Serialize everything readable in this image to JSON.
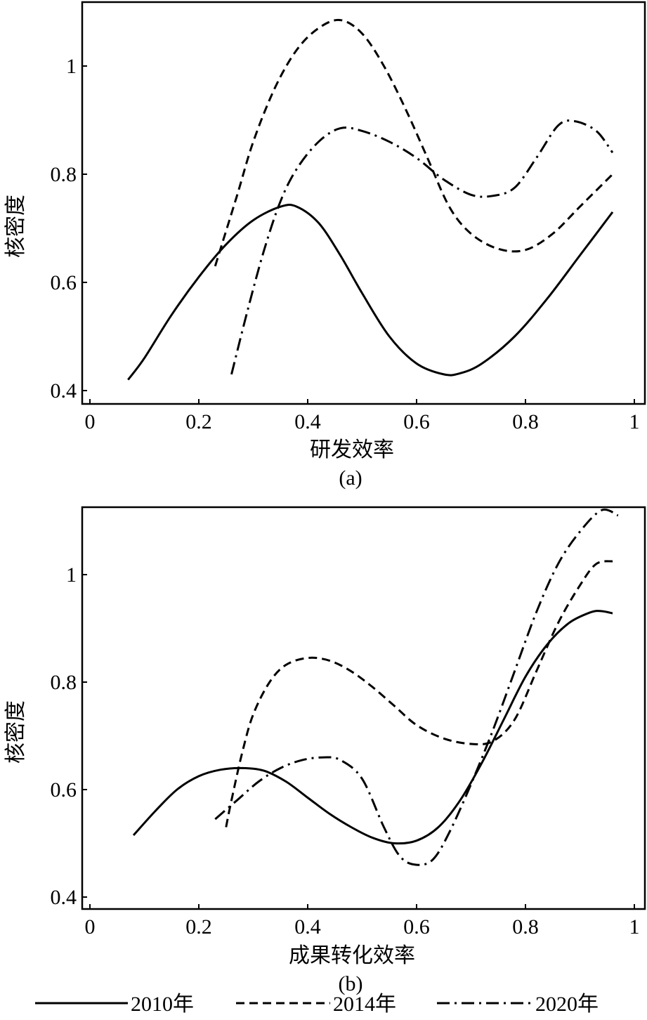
{
  "chart_data": [
    {
      "type": "line",
      "panel_label": "(a)",
      "xlabel": "研发效率",
      "ylabel": "核密度",
      "xlim": [
        0,
        1
      ],
      "ylim": [
        0.4,
        1.1
      ],
      "xticks": [
        "0",
        "0.2",
        "0.4",
        "0.6",
        "0.8",
        "1"
      ],
      "yticks": [
        "0.4",
        "0.6",
        "0.8",
        "1"
      ],
      "series": [
        {
          "name": "2010年",
          "style": "solid",
          "x": [
            0.07,
            0.1,
            0.15,
            0.2,
            0.25,
            0.3,
            0.35,
            0.38,
            0.42,
            0.46,
            0.5,
            0.55,
            0.6,
            0.65,
            0.68,
            0.72,
            0.78,
            0.84,
            0.9,
            0.96
          ],
          "y": [
            0.42,
            0.46,
            0.54,
            0.61,
            0.67,
            0.715,
            0.74,
            0.74,
            0.71,
            0.65,
            0.58,
            0.5,
            0.45,
            0.43,
            0.432,
            0.45,
            0.5,
            0.57,
            0.65,
            0.73
          ]
        },
        {
          "name": "2014年",
          "style": "dashed",
          "x": [
            0.23,
            0.27,
            0.3,
            0.34,
            0.38,
            0.42,
            0.46,
            0.5,
            0.54,
            0.58,
            0.62,
            0.66,
            0.7,
            0.75,
            0.8,
            0.85,
            0.9,
            0.96
          ],
          "y": [
            0.63,
            0.76,
            0.86,
            0.96,
            1.03,
            1.07,
            1.085,
            1.06,
            1.0,
            0.92,
            0.83,
            0.74,
            0.69,
            0.662,
            0.66,
            0.69,
            0.74,
            0.8
          ]
        },
        {
          "name": "2020年",
          "style": "dashdot",
          "x": [
            0.26,
            0.29,
            0.32,
            0.35,
            0.38,
            0.42,
            0.46,
            0.5,
            0.55,
            0.6,
            0.65,
            0.7,
            0.74,
            0.78,
            0.82,
            0.86,
            0.89,
            0.93,
            0.96
          ],
          "y": [
            0.43,
            0.55,
            0.66,
            0.75,
            0.81,
            0.86,
            0.885,
            0.88,
            0.86,
            0.83,
            0.79,
            0.762,
            0.76,
            0.775,
            0.83,
            0.89,
            0.898,
            0.88,
            0.84
          ]
        }
      ]
    },
    {
      "type": "line",
      "panel_label": "(b)",
      "xlabel": "成果转化效率",
      "ylabel": "核密度",
      "xlim": [
        0,
        1
      ],
      "ylim": [
        0.38,
        1.12
      ],
      "xticks": [
        "0",
        "0.2",
        "0.4",
        "0.6",
        "0.8",
        "1"
      ],
      "yticks": [
        "0.4",
        "0.6",
        "0.8",
        "1"
      ],
      "series": [
        {
          "name": "2010年",
          "style": "solid",
          "x": [
            0.08,
            0.12,
            0.16,
            0.2,
            0.24,
            0.28,
            0.32,
            0.36,
            0.4,
            0.44,
            0.48,
            0.52,
            0.56,
            0.6,
            0.64,
            0.68,
            0.72,
            0.76,
            0.8,
            0.84,
            0.88,
            0.92,
            0.94,
            0.96
          ],
          "y": [
            0.515,
            0.56,
            0.6,
            0.625,
            0.637,
            0.64,
            0.635,
            0.615,
            0.585,
            0.555,
            0.53,
            0.51,
            0.5,
            0.505,
            0.53,
            0.58,
            0.65,
            0.73,
            0.81,
            0.87,
            0.91,
            0.93,
            0.932,
            0.928
          ]
        },
        {
          "name": "2014年",
          "style": "dashed",
          "x": [
            0.25,
            0.26,
            0.28,
            0.3,
            0.33,
            0.36,
            0.4,
            0.44,
            0.48,
            0.52,
            0.56,
            0.6,
            0.65,
            0.7,
            0.74,
            0.78,
            0.82,
            0.86,
            0.9,
            0.93,
            0.96
          ],
          "y": [
            0.53,
            0.58,
            0.67,
            0.74,
            0.8,
            0.832,
            0.845,
            0.84,
            0.82,
            0.79,
            0.755,
            0.72,
            0.695,
            0.685,
            0.69,
            0.73,
            0.82,
            0.91,
            0.98,
            1.02,
            1.025
          ]
        },
        {
          "name": "2020年",
          "style": "dashdot",
          "x": [
            0.23,
            0.27,
            0.31,
            0.35,
            0.39,
            0.43,
            0.46,
            0.5,
            0.54,
            0.57,
            0.6,
            0.63,
            0.66,
            0.7,
            0.74,
            0.78,
            0.82,
            0.86,
            0.9,
            0.94,
            0.97
          ],
          "y": [
            0.545,
            0.58,
            0.615,
            0.64,
            0.655,
            0.66,
            0.655,
            0.62,
            0.53,
            0.475,
            0.46,
            0.47,
            0.52,
            0.61,
            0.71,
            0.82,
            0.93,
            1.02,
            1.08,
            1.12,
            1.11
          ]
        }
      ]
    }
  ],
  "legend": {
    "placement": "bottom",
    "entries": [
      {
        "label": "2010年",
        "style": "solid"
      },
      {
        "label": "2014年",
        "style": "dashed"
      },
      {
        "label": "2020年",
        "style": "dashdot"
      }
    ]
  }
}
